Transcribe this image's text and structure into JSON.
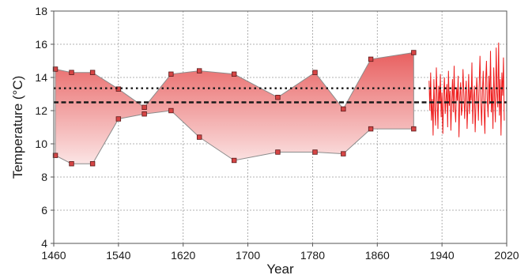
{
  "chart_data": {
    "type": "line",
    "xlabel": "Year",
    "ylabel": "Temperature (°C)",
    "xlim": [
      1460,
      2020
    ],
    "ylim": [
      4,
      18
    ],
    "x_ticks": [
      1460,
      1540,
      1620,
      1700,
      1780,
      1860,
      1940,
      2020
    ],
    "y_ticks": [
      4,
      6,
      8,
      10,
      12,
      14,
      16,
      18
    ],
    "grid": "dotted",
    "band": {
      "upper": [
        [
          1462,
          14.5
        ],
        [
          1482,
          14.3
        ],
        [
          1508,
          14.3
        ],
        [
          1540,
          13.3
        ],
        [
          1572,
          12.2
        ],
        [
          1605,
          14.2
        ],
        [
          1640,
          14.4
        ],
        [
          1683,
          14.2
        ],
        [
          1737,
          12.8
        ],
        [
          1783,
          14.3
        ],
        [
          1818,
          12.1
        ],
        [
          1852,
          15.1
        ],
        [
          1905,
          15.5
        ]
      ],
      "lower": [
        [
          1462,
          9.3
        ],
        [
          1482,
          8.8
        ],
        [
          1508,
          8.8
        ],
        [
          1540,
          11.5
        ],
        [
          1572,
          11.8
        ],
        [
          1605,
          12.0
        ],
        [
          1640,
          10.4
        ],
        [
          1683,
          9.0
        ],
        [
          1737,
          9.5
        ],
        [
          1783,
          9.5
        ],
        [
          1818,
          9.4
        ],
        [
          1852,
          10.9
        ],
        [
          1905,
          10.9
        ]
      ],
      "fill_top": "#e86060",
      "fill_bottom": "#fbe4e4",
      "edge": "#8c8c8c",
      "marker": "#d64545"
    },
    "observed": {
      "x_start": 1924,
      "x_end": 2017,
      "color": "#ee1c1c",
      "values": [
        13.8,
        12.0,
        14.3,
        11.4,
        12.7,
        10.5,
        13.9,
        12.2,
        11.1,
        14.6,
        12.8,
        10.9,
        13.5,
        12.4,
        14.2,
        11.6,
        13.1,
        10.6,
        12.9,
        14.0,
        11.8,
        12.7,
        13.6,
        11.0,
        14.4,
        12.3,
        13.2,
        10.8,
        12.5,
        13.9,
        11.9,
        14.7,
        12.1,
        11.3,
        13.4,
        12.6,
        14.1,
        10.4,
        12.8,
        13.7,
        11.7,
        12.2,
        14.5,
        13.0,
        11.5,
        12.9,
        13.8,
        10.9,
        12.4,
        14.2,
        11.8,
        13.3,
        12.6,
        14.9,
        11.2,
        12.7,
        13.5,
        10.7,
        12.3,
        14.0,
        12.9,
        11.4,
        13.6,
        15.3,
        12.5,
        11.1,
        13.2,
        14.4,
        12.0,
        10.6,
        13.8,
        15.0,
        12.7,
        11.6,
        14.1,
        12.4,
        15.6,
        11.9,
        13.4,
        10.9,
        14.6,
        12.8,
        11.3,
        15.8,
        13.1,
        12.2,
        16.1,
        11.7,
        13.9,
        10.5,
        14.3,
        12.9,
        15.2,
        11.4
      ]
    },
    "reference_lines": [
      {
        "style": "dotted",
        "value": 13.35,
        "color": "#1a1a1a"
      },
      {
        "style": "dashed",
        "value": 12.5,
        "color": "#1a1a1a"
      }
    ]
  }
}
